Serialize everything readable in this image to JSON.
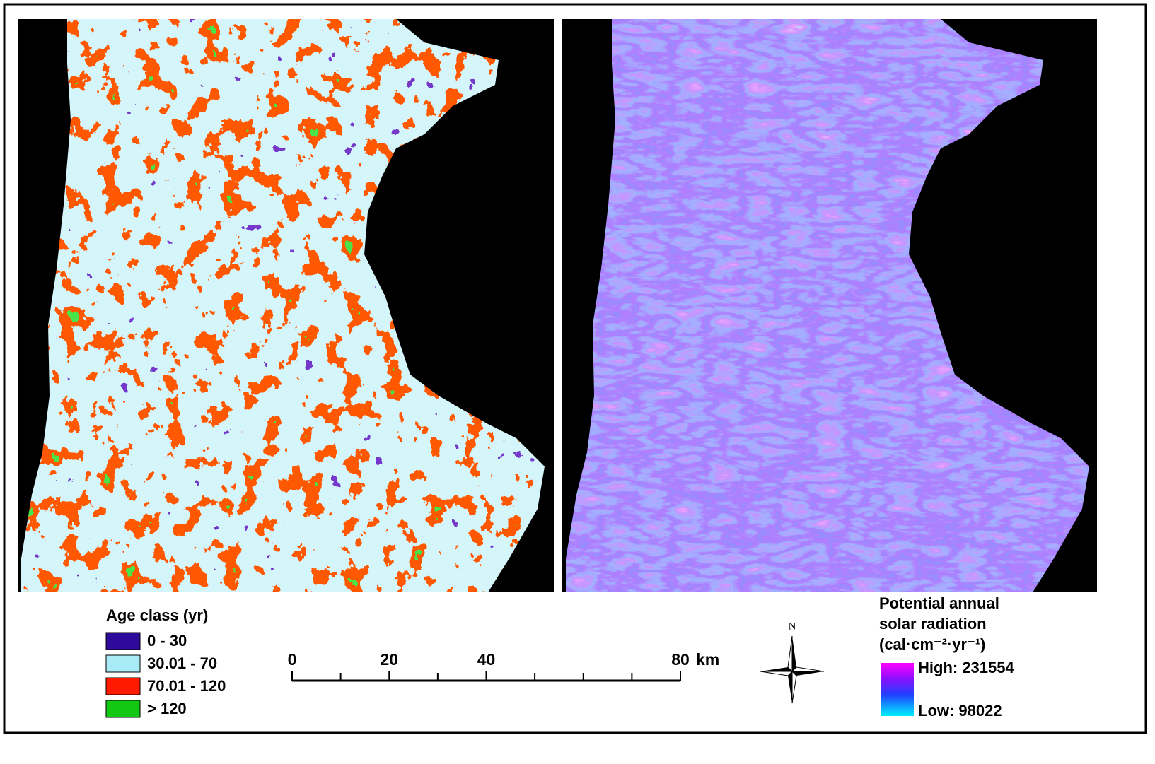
{
  "left_legend": {
    "title": "Age class (yr)",
    "items": [
      {
        "label": "0 - 30",
        "color": "#2e0a9a"
      },
      {
        "label": "30.01 - 70",
        "color": "#a8eaf6"
      },
      {
        "label": "70.01 - 120",
        "color": "#ff1a00"
      },
      {
        "label": "> 120",
        "color": "#12c812"
      }
    ]
  },
  "scale_bar": {
    "labeled_ticks": [
      0,
      20,
      40,
      80
    ],
    "minor_ticks": [
      10,
      30,
      50,
      60,
      70
    ],
    "unit": "km"
  },
  "north_arrow": {
    "label": "N"
  },
  "right_legend": {
    "title": [
      "Potential annual",
      "solar radiation",
      "(cal·cm⁻²·yr⁻¹)"
    ],
    "high": "High: 231554",
    "low": "Low: 98022"
  }
}
